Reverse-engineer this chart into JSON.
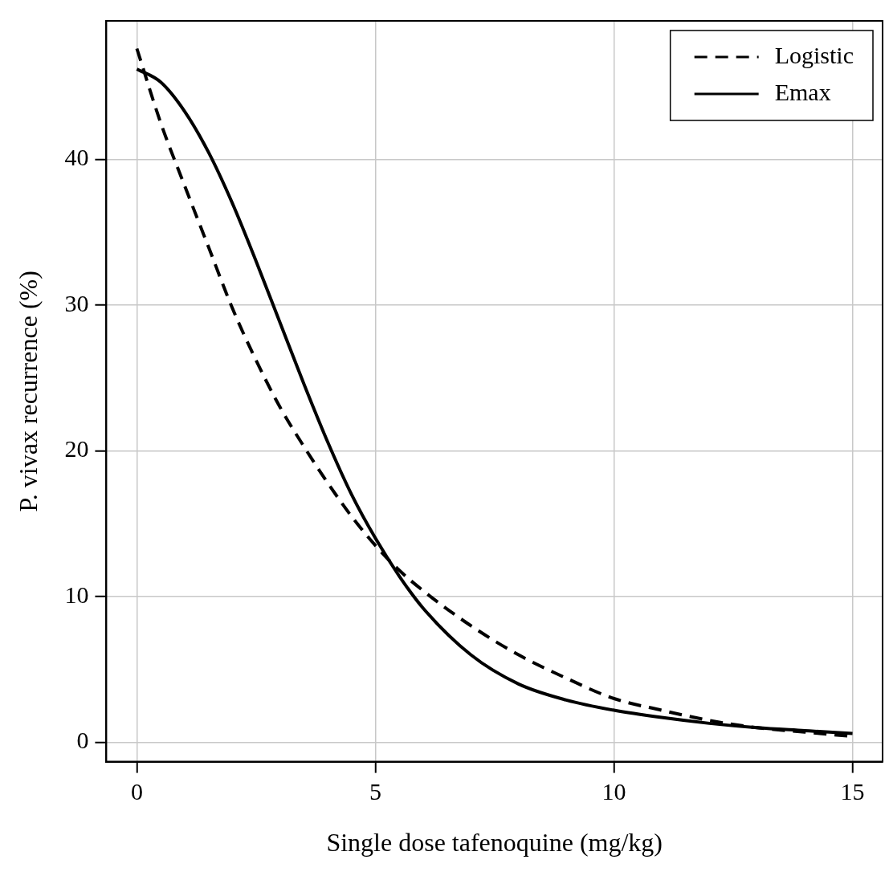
{
  "chart_data": {
    "type": "line",
    "xlabel": "Single dose tafenoquine (mg/kg)",
    "ylabel": "P. vivax recurrence (%)",
    "xlim": [
      -0.64,
      15.63
    ],
    "ylim": [
      -1.33,
      49.5
    ],
    "xticks": [
      0,
      5,
      10,
      15
    ],
    "yticks": [
      0,
      10,
      20,
      30,
      40
    ],
    "grid": true,
    "legend": "top right",
    "marker": "none",
    "x": [
      0,
      0.5,
      1,
      1.5,
      2,
      2.5,
      3,
      3.5,
      4,
      4.5,
      5,
      5.5,
      6,
      7,
      8,
      9,
      10,
      11,
      12,
      13,
      14,
      15
    ],
    "series": [
      {
        "name": "Logistic",
        "color": "#000000",
        "line_style": "dashed",
        "values": [
          47.6,
          42.5,
          38.2,
          34,
          29.8,
          26.2,
          23,
          20.3,
          17.8,
          15.5,
          13.5,
          11.8,
          10.4,
          8.0,
          6.0,
          4.4,
          3.0,
          2.2,
          1.5,
          1.0,
          0.7,
          0.4
        ]
      },
      {
        "name": "Emax",
        "color": "#000000",
        "line_style": "solid",
        "values": [
          46.2,
          45.3,
          43.3,
          40.5,
          37,
          33,
          28.8,
          24.6,
          20.6,
          17,
          14,
          11.4,
          9.2,
          6.0,
          4.0,
          2.9,
          2.2,
          1.7,
          1.3,
          1.0,
          0.8,
          0.6
        ]
      }
    ]
  }
}
